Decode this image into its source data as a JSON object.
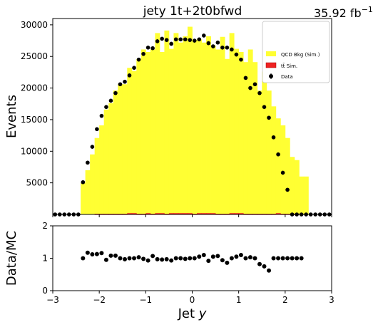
{
  "header": {
    "title": "jety  1t+2t0bfwd",
    "lumi": "35.92 fb",
    "lumi_sup": "−1"
  },
  "colors": {
    "qcd": "#ffff33",
    "ttbar": "#ee2222",
    "data": "#000000",
    "axes": "#000000"
  },
  "chart_data": [
    {
      "type": "bar",
      "panel": "main",
      "ylabel": "Events",
      "xlim": [
        -3,
        3
      ],
      "ylim": [
        0,
        31000
      ],
      "yticks": [
        5000,
        10000,
        15000,
        20000,
        25000,
        30000
      ],
      "ytick_labels": [
        "5000",
        "10000",
        "15000",
        "20000",
        "25000",
        "30000"
      ],
      "bin_edges": [
        -3.0,
        -2.9,
        -2.8,
        -2.7,
        -2.6,
        -2.5,
        -2.4,
        -2.3,
        -2.2,
        -2.1,
        -2.0,
        -1.9,
        -1.8,
        -1.7,
        -1.6,
        -1.5,
        -1.4,
        -1.3,
        -1.2,
        -1.1,
        -1.0,
        -0.9,
        -0.8,
        -0.7,
        -0.6,
        -0.5,
        -0.4,
        -0.3,
        -0.2,
        -0.1,
        0.0,
        0.1,
        0.2,
        0.3,
        0.4,
        0.5,
        0.6,
        0.7,
        0.8,
        0.9,
        1.0,
        1.1,
        1.2,
        1.3,
        1.4,
        1.5,
        1.6,
        1.7,
        1.8,
        1.9,
        2.0,
        2.1,
        2.2,
        2.3,
        2.4,
        2.5,
        2.6,
        2.7,
        2.8,
        2.9,
        3.0
      ],
      "series": [
        {
          "name": "QCD Bkg (Sim.)",
          "style": "filled-histogram",
          "values": [
            0,
            0,
            0,
            0,
            0,
            0,
            5000,
            7000,
            9500,
            12000,
            14000,
            16500,
            17500,
            19500,
            20500,
            20500,
            23000,
            22500,
            24500,
            26000,
            25500,
            26000,
            28500,
            25500,
            29000,
            26000,
            28500,
            27000,
            28000,
            29500,
            27500,
            27500,
            27000,
            28000,
            26500,
            26000,
            28000,
            24500,
            28500,
            26000,
            25500,
            24000,
            26000,
            24000,
            19500,
            22500,
            19500,
            17000,
            15000,
            14000,
            12000,
            9000,
            8500,
            6000,
            6000,
            0,
            0,
            0,
            0,
            0
          ]
        },
        {
          "name": "tt̄ Sim.",
          "style": "filled-histogram",
          "values": [
            0,
            0,
            0,
            0,
            0,
            0,
            0,
            0,
            0,
            100,
            100,
            100,
            100,
            100,
            100,
            100,
            200,
            200,
            100,
            100,
            200,
            100,
            200,
            200,
            100,
            200,
            200,
            200,
            200,
            200,
            100,
            200,
            200,
            200,
            200,
            100,
            100,
            100,
            200,
            200,
            200,
            100,
            100,
            100,
            100,
            100,
            100,
            100,
            200,
            100,
            100,
            100,
            100,
            0,
            0,
            0,
            0,
            0,
            0,
            0
          ]
        }
      ],
      "data_points": {
        "name": "Data",
        "x": [
          -2.95,
          -2.85,
          -2.75,
          -2.65,
          -2.55,
          -2.45,
          -2.35,
          -2.25,
          -2.15,
          -2.05,
          -1.95,
          -1.85,
          -1.75,
          -1.65,
          -1.55,
          -1.45,
          -1.35,
          -1.25,
          -1.15,
          -1.05,
          -0.95,
          -0.85,
          -0.75,
          -0.65,
          -0.55,
          -0.45,
          -0.35,
          -0.25,
          -0.15,
          -0.05,
          0.05,
          0.15,
          0.25,
          0.35,
          0.45,
          0.55,
          0.65,
          0.75,
          0.85,
          0.95,
          1.05,
          1.15,
          1.25,
          1.35,
          1.45,
          1.55,
          1.65,
          1.75,
          1.85,
          1.95,
          2.05,
          2.15,
          2.25,
          2.35,
          2.45,
          2.55,
          2.65,
          2.75,
          2.85,
          2.95
        ],
        "y": [
          0,
          0,
          0,
          0,
          0,
          0,
          5100,
          8200,
          10700,
          13500,
          15600,
          17000,
          18000,
          19200,
          20600,
          21000,
          22000,
          23200,
          24500,
          25400,
          26400,
          26300,
          27400,
          27800,
          27600,
          27000,
          27700,
          27700,
          27700,
          27600,
          27500,
          27700,
          28300,
          27100,
          26600,
          27200,
          26400,
          26400,
          26100,
          25300,
          24500,
          21600,
          20000,
          20600,
          19200,
          17000,
          15300,
          12200,
          9500,
          6600,
          3900,
          0,
          0,
          0,
          0,
          0,
          0,
          0,
          0,
          0
        ],
        "yerr": 300
      },
      "legend": {
        "placement": "top-right",
        "entries": [
          "QCD Bkg (Sim.)",
          "tt̄ Sim.",
          "Data"
        ]
      }
    },
    {
      "type": "scatter",
      "panel": "ratio",
      "xlabel": "Jet y",
      "ylabel": "Data/MC",
      "xlim": [
        -3,
        3
      ],
      "ylim": [
        0,
        2
      ],
      "xticks": [
        -3,
        -2,
        -1,
        0,
        1,
        2,
        3
      ],
      "xtick_labels": [
        "−3",
        "−2",
        "−1",
        "0",
        "1",
        "2",
        "3"
      ],
      "yticks": [
        0,
        1,
        2
      ],
      "ytick_labels": [
        "0",
        "1",
        "2"
      ],
      "series": [
        {
          "x": [
            -2.35,
            -2.25,
            -2.15,
            -2.05,
            -1.95,
            -1.85,
            -1.75,
            -1.65,
            -1.55,
            -1.45,
            -1.35,
            -1.25,
            -1.15,
            -1.05,
            -0.95,
            -0.85,
            -0.75,
            -0.65,
            -0.55,
            -0.45,
            -0.35,
            -0.25,
            -0.15,
            -0.05,
            0.05,
            0.15,
            0.25,
            0.35,
            0.45,
            0.55,
            0.65,
            0.75,
            0.85,
            0.95,
            1.05,
            1.15,
            1.25,
            1.35,
            1.45,
            1.55,
            1.65,
            1.75,
            1.85,
            1.95,
            2.05,
            2.15,
            2.25,
            2.35
          ],
          "y": [
            1.0,
            1.17,
            1.12,
            1.13,
            1.16,
            0.95,
            1.08,
            1.08,
            1.0,
            0.97,
            1.0,
            1.0,
            1.03,
            0.98,
            0.93,
            1.07,
            0.97,
            0.96,
            0.97,
            0.93,
            1.0,
            1.0,
            0.98,
            1.0,
            1.0,
            1.05,
            1.1,
            0.92,
            1.05,
            1.07,
            0.94,
            0.86,
            1.0,
            1.05,
            1.1,
            1.0,
            1.03,
            1.0,
            0.82,
            0.75,
            0.62,
            1.0,
            1.0,
            1.0,
            1.0,
            1.0,
            1.0,
            1.0
          ]
        }
      ]
    }
  ]
}
